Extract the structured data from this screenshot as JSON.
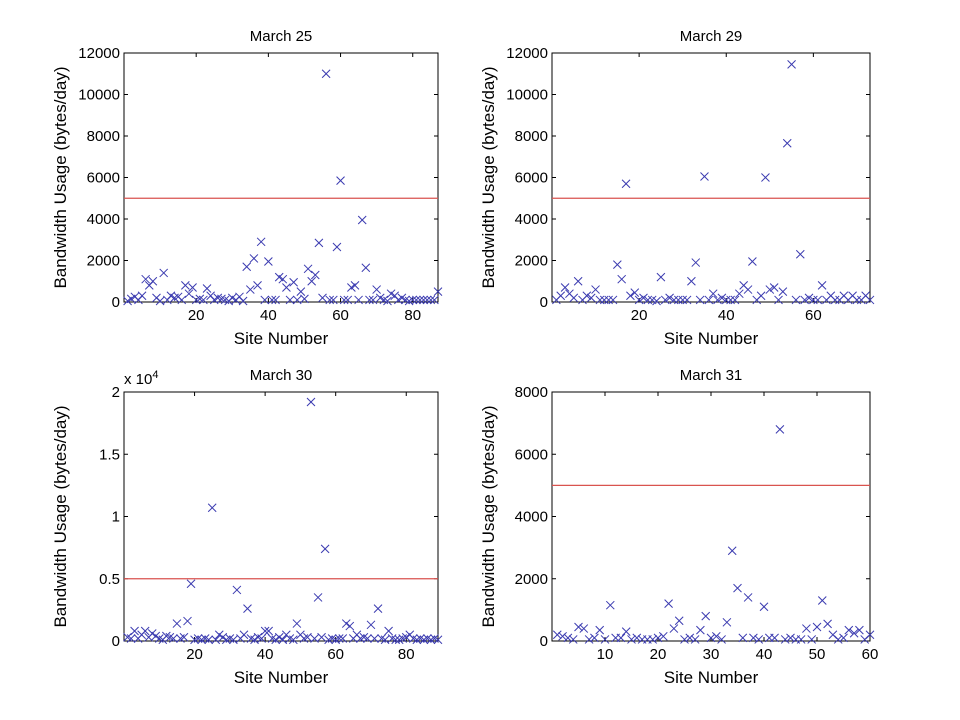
{
  "chart_data": [
    {
      "type": "scatter",
      "title": "March 25",
      "xlabel": "Site Number",
      "ylabel": "Bandwidth Usage (bytes/day)",
      "xlim": [
        0,
        87
      ],
      "ylim": [
        0,
        12000
      ],
      "xticks": [
        20,
        40,
        60,
        80
      ],
      "yticks": [
        0,
        2000,
        4000,
        6000,
        8000,
        10000,
        12000
      ],
      "ytick_labels": [
        "0",
        "2000",
        "4000",
        "6000",
        "8000",
        "10000",
        "12000"
      ],
      "exponent_label": "",
      "threshold": 5000,
      "marker_color": "#3b3bb0",
      "threshold_color": "#d9534f",
      "series": [
        {
          "x": [
            1,
            2,
            3,
            4,
            5,
            6,
            7,
            8,
            9,
            10,
            11,
            12,
            13,
            14,
            15,
            16,
            17,
            18,
            19,
            20,
            21,
            22,
            23,
            24,
            25,
            26,
            27,
            28,
            29,
            30,
            31,
            32,
            33,
            34,
            35,
            36,
            37,
            38,
            39,
            40,
            41,
            42,
            43,
            44,
            45,
            46,
            47,
            48,
            49,
            50,
            51,
            52,
            53,
            54,
            55,
            56,
            57,
            58,
            59,
            60,
            61,
            62,
            63,
            64,
            65,
            66,
            67,
            68,
            69,
            70,
            71,
            72,
            73,
            74,
            75,
            76,
            77,
            78,
            79,
            80,
            81,
            82,
            83,
            84,
            85,
            86,
            87
          ],
          "y": [
            50,
            150,
            250,
            100,
            300,
            1100,
            800,
            1000,
            200,
            50,
            1400,
            100,
            300,
            200,
            250,
            100,
            800,
            400,
            700,
            100,
            150,
            100,
            650,
            300,
            100,
            200,
            150,
            100,
            50,
            200,
            100,
            250,
            50,
            1700,
            600,
            2100,
            800,
            2900,
            100,
            1950,
            100,
            100,
            1200,
            1100,
            700,
            100,
            950,
            100,
            500,
            150,
            1600,
            1000,
            1300,
            2850,
            200,
            11000,
            100,
            100,
            2650,
            5850,
            100,
            100,
            700,
            800,
            100,
            3950,
            1650,
            100,
            100,
            600,
            200,
            100,
            50,
            400,
            300,
            100,
            200,
            100,
            50,
            100,
            100,
            100,
            100,
            100,
            100,
            100,
            500
          ]
        }
      ]
    },
    {
      "type": "scatter",
      "title": "March 29",
      "xlabel": "Site Number",
      "ylabel": "Bandwidth Usage (bytes/day)",
      "xlim": [
        0,
        73
      ],
      "ylim": [
        0,
        12000
      ],
      "xticks": [
        20,
        40,
        60
      ],
      "yticks": [
        0,
        2000,
        4000,
        6000,
        8000,
        10000,
        12000
      ],
      "ytick_labels": [
        "0",
        "2000",
        "4000",
        "6000",
        "8000",
        "10000",
        "12000"
      ],
      "exponent_label": "",
      "threshold": 5000,
      "marker_color": "#3b3bb0",
      "threshold_color": "#d9534f",
      "series": [
        {
          "x": [
            1,
            2,
            3,
            4,
            5,
            6,
            7,
            8,
            9,
            10,
            11,
            12,
            13,
            14,
            15,
            16,
            17,
            18,
            19,
            20,
            21,
            22,
            23,
            24,
            25,
            26,
            27,
            28,
            29,
            30,
            31,
            32,
            33,
            34,
            35,
            36,
            37,
            38,
            39,
            40,
            41,
            42,
            43,
            44,
            45,
            46,
            47,
            48,
            49,
            50,
            51,
            52,
            53,
            54,
            55,
            56,
            57,
            58,
            59,
            60,
            61,
            62,
            63,
            64,
            65,
            66,
            67,
            68,
            69,
            70,
            71,
            72,
            73
          ],
          "y": [
            100,
            300,
            700,
            400,
            200,
            1000,
            100,
            300,
            200,
            600,
            100,
            100,
            100,
            100,
            1800,
            1100,
            5700,
            300,
            450,
            100,
            200,
            100,
            100,
            50,
            1200,
            100,
            200,
            100,
            100,
            100,
            100,
            1000,
            1900,
            100,
            6050,
            100,
            400,
            100,
            200,
            100,
            100,
            100,
            400,
            800,
            600,
            1950,
            100,
            300,
            6000,
            600,
            700,
            100,
            500,
            7650,
            11450,
            100,
            2300,
            100,
            200,
            100,
            100,
            800,
            100,
            300,
            100,
            100,
            300,
            100,
            300,
            100,
            100,
            300,
            100
          ]
        }
      ]
    },
    {
      "type": "scatter",
      "title": "March 30",
      "xlabel": "Site Number",
      "ylabel": "Bandwidth Usage (bytes/day)",
      "xlim": [
        0,
        89
      ],
      "ylim": [
        0,
        2
      ],
      "xticks": [
        20,
        40,
        60,
        80
      ],
      "yticks": [
        0,
        0.5,
        1,
        1.5,
        2
      ],
      "ytick_labels": [
        "0",
        "0.5",
        "1",
        "1.5",
        "2"
      ],
      "exponent_label": "x 10",
      "exponent_power": "4",
      "threshold": 0.5,
      "marker_color": "#3b3bb0",
      "threshold_color": "#d9534f",
      "series": [
        {
          "x": [
            1,
            2,
            3,
            4,
            5,
            6,
            7,
            8,
            9,
            10,
            11,
            12,
            13,
            14,
            15,
            16,
            17,
            18,
            19,
            20,
            21,
            22,
            23,
            24,
            25,
            26,
            27,
            28,
            29,
            30,
            31,
            32,
            33,
            34,
            35,
            36,
            37,
            38,
            39,
            40,
            41,
            42,
            43,
            44,
            45,
            46,
            47,
            48,
            49,
            50,
            51,
            52,
            53,
            54,
            55,
            56,
            57,
            58,
            59,
            60,
            61,
            62,
            63,
            64,
            65,
            66,
            67,
            68,
            69,
            70,
            71,
            72,
            73,
            74,
            75,
            76,
            77,
            78,
            79,
            80,
            81,
            82,
            83,
            84,
            85,
            86,
            87,
            88,
            89
          ],
          "y": [
            0.03,
            0.02,
            0.08,
            0.02,
            0.05,
            0.08,
            0.03,
            0.06,
            0.04,
            0.02,
            0.01,
            0.04,
            0.03,
            0.02,
            0.14,
            0.02,
            0.03,
            0.16,
            0.46,
            0.01,
            0.02,
            0.01,
            0.02,
            0.01,
            1.07,
            0.01,
            0.05,
            0.03,
            0.01,
            0.02,
            0.01,
            0.41,
            0.02,
            0.05,
            0.26,
            0.02,
            0.01,
            0.03,
            0.02,
            0.08,
            0.08,
            0.02,
            0.01,
            0.03,
            0.01,
            0.05,
            0.02,
            0.01,
            0.14,
            0.05,
            0.02,
            0.03,
            1.92,
            0.02,
            0.35,
            0.03,
            0.74,
            0.01,
            0.02,
            0.01,
            0.02,
            0.02,
            0.14,
            0.12,
            0.02,
            0.05,
            0.02,
            0.03,
            0.02,
            0.13,
            0.02,
            0.26,
            0.02,
            0.01,
            0.08,
            0.02,
            0.01,
            0.01,
            0.02,
            0.03,
            0.05,
            0.02,
            0.01,
            0.02,
            0.01,
            0.02,
            0.01,
            0.02,
            0.01
          ]
        }
      ]
    },
    {
      "type": "scatter",
      "title": "March 31",
      "xlabel": "Site Number",
      "ylabel": "Bandwidth Usage (bytes/day)",
      "xlim": [
        0,
        60
      ],
      "ylim": [
        0,
        8000
      ],
      "xticks": [
        10,
        20,
        30,
        40,
        50,
        60
      ],
      "yticks": [
        0,
        2000,
        4000,
        6000,
        8000
      ],
      "ytick_labels": [
        "0",
        "2000",
        "4000",
        "6000",
        "8000"
      ],
      "exponent_label": "",
      "threshold": 5000,
      "marker_color": "#3b3bb0",
      "threshold_color": "#d9534f",
      "series": [
        {
          "x": [
            1,
            2,
            3,
            4,
            5,
            6,
            7,
            8,
            9,
            10,
            11,
            12,
            13,
            14,
            15,
            16,
            17,
            18,
            19,
            20,
            21,
            22,
            23,
            24,
            25,
            26,
            27,
            28,
            29,
            30,
            31,
            32,
            33,
            34,
            35,
            36,
            37,
            38,
            39,
            40,
            41,
            42,
            43,
            44,
            45,
            46,
            47,
            48,
            49,
            50,
            51,
            52,
            53,
            54,
            55,
            56,
            57,
            58,
            59,
            60
          ],
          "y": [
            200,
            150,
            100,
            50,
            450,
            400,
            50,
            100,
            350,
            50,
            1150,
            100,
            100,
            300,
            50,
            100,
            50,
            50,
            50,
            100,
            150,
            1200,
            400,
            650,
            50,
            100,
            50,
            350,
            800,
            100,
            150,
            50,
            600,
            2900,
            1700,
            100,
            1400,
            100,
            50,
            1100,
            100,
            100,
            6800,
            50,
            100,
            50,
            50,
            400,
            50,
            450,
            1300,
            550,
            200,
            50,
            100,
            350,
            250,
            350,
            50,
            200
          ]
        }
      ]
    }
  ]
}
